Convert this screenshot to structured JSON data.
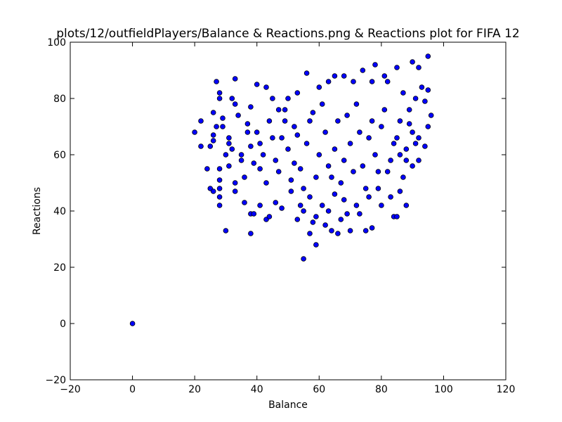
{
  "chart_data": {
    "type": "scatter",
    "title": "plots/12/outfieldPlayers/Balance & Reactions.png & Reactions plot for FIFA 12",
    "xlabel": "Balance",
    "ylabel": "Reactions",
    "xlim": [
      -20,
      120
    ],
    "ylim": [
      -20,
      100
    ],
    "xticks": [
      -20,
      0,
      20,
      40,
      60,
      80,
      100,
      120
    ],
    "yticks": [
      -20,
      0,
      20,
      40,
      60,
      80,
      100
    ],
    "xtick_labels": [
      "−20",
      "0",
      "20",
      "40",
      "60",
      "80",
      "100",
      "120"
    ],
    "ytick_labels": [
      "−20",
      "0",
      "20",
      "40",
      "60",
      "80",
      "100"
    ],
    "grid": false,
    "marker_color": "#0000ff",
    "marker_edge": "#000000",
    "points": [
      [
        0,
        0
      ],
      [
        20,
        68
      ],
      [
        22,
        72
      ],
      [
        22,
        63
      ],
      [
        24,
        55
      ],
      [
        25,
        48
      ],
      [
        25,
        63
      ],
      [
        26,
        47
      ],
      [
        26,
        65
      ],
      [
        26,
        67
      ],
      [
        26,
        75
      ],
      [
        27,
        86
      ],
      [
        27,
        70
      ],
      [
        28,
        42
      ],
      [
        28,
        45
      ],
      [
        28,
        48
      ],
      [
        28,
        51
      ],
      [
        28,
        55
      ],
      [
        28,
        80
      ],
      [
        28,
        82
      ],
      [
        29,
        70
      ],
      [
        29,
        73
      ],
      [
        30,
        33
      ],
      [
        30,
        60
      ],
      [
        31,
        56
      ],
      [
        31,
        64
      ],
      [
        31,
        66
      ],
      [
        32,
        80
      ],
      [
        32,
        62
      ],
      [
        33,
        87
      ],
      [
        33,
        78
      ],
      [
        33,
        50
      ],
      [
        33,
        47
      ],
      [
        34,
        74
      ],
      [
        35,
        60
      ],
      [
        36,
        43
      ],
      [
        37,
        68
      ],
      [
        38,
        32
      ],
      [
        38,
        39
      ],
      [
        39,
        39
      ],
      [
        38,
        77
      ],
      [
        40,
        85
      ],
      [
        41,
        55
      ],
      [
        41,
        42
      ],
      [
        43,
        37
      ],
      [
        43,
        84
      ],
      [
        44,
        38
      ],
      [
        45,
        80
      ],
      [
        46,
        43
      ],
      [
        47,
        76
      ],
      [
        48,
        41
      ],
      [
        49,
        72
      ],
      [
        50,
        80
      ],
      [
        51,
        47
      ],
      [
        52,
        57
      ],
      [
        53,
        37
      ],
      [
        53,
        82
      ],
      [
        54,
        42
      ],
      [
        55,
        23
      ],
      [
        55,
        40
      ],
      [
        56,
        89
      ],
      [
        57,
        32
      ],
      [
        57,
        45
      ],
      [
        58,
        36
      ],
      [
        59,
        28
      ],
      [
        59,
        38
      ],
      [
        60,
        84
      ],
      [
        61,
        42
      ],
      [
        62,
        35
      ],
      [
        63,
        86
      ],
      [
        63,
        40
      ],
      [
        64,
        33
      ],
      [
        65,
        88
      ],
      [
        65,
        46
      ],
      [
        66,
        32
      ],
      [
        67,
        37
      ],
      [
        68,
        88
      ],
      [
        68,
        44
      ],
      [
        69,
        39
      ],
      [
        70,
        33
      ],
      [
        71,
        86
      ],
      [
        72,
        42
      ],
      [
        73,
        39
      ],
      [
        74,
        90
      ],
      [
        75,
        33
      ],
      [
        76,
        45
      ],
      [
        77,
        86
      ],
      [
        77,
        34
      ],
      [
        78,
        92
      ],
      [
        79,
        48
      ],
      [
        80,
        42
      ],
      [
        81,
        88
      ],
      [
        82,
        86
      ],
      [
        83,
        45
      ],
      [
        84,
        38
      ],
      [
        85,
        38
      ],
      [
        85,
        91
      ],
      [
        86,
        47
      ],
      [
        86,
        60
      ],
      [
        87,
        82
      ],
      [
        88,
        58
      ],
      [
        88,
        42
      ],
      [
        89,
        71
      ],
      [
        90,
        93
      ],
      [
        90,
        56
      ],
      [
        91,
        80
      ],
      [
        92,
        91
      ],
      [
        92,
        66
      ],
      [
        93,
        84
      ],
      [
        94,
        63
      ],
      [
        94,
        79
      ],
      [
        95,
        95
      ],
      [
        95,
        83
      ],
      [
        95,
        70
      ],
      [
        96,
        74
      ],
      [
        38,
        63
      ],
      [
        40,
        68
      ],
      [
        42,
        60
      ],
      [
        44,
        72
      ],
      [
        46,
        58
      ],
      [
        48,
        66
      ],
      [
        50,
        62
      ],
      [
        52,
        70
      ],
      [
        54,
        55
      ],
      [
        56,
        64
      ],
      [
        58,
        75
      ],
      [
        60,
        60
      ],
      [
        62,
        68
      ],
      [
        64,
        52
      ],
      [
        66,
        72
      ],
      [
        68,
        58
      ],
      [
        70,
        64
      ],
      [
        72,
        78
      ],
      [
        74,
        56
      ],
      [
        76,
        66
      ],
      [
        78,
        60
      ],
      [
        80,
        70
      ],
      [
        82,
        54
      ],
      [
        84,
        64
      ],
      [
        86,
        72
      ],
      [
        88,
        62
      ],
      [
        90,
        68
      ],
      [
        92,
        58
      ],
      [
        35,
        58
      ],
      [
        36,
        52
      ],
      [
        37,
        71
      ],
      [
        39,
        57
      ],
      [
        41,
        64
      ],
      [
        43,
        50
      ],
      [
        45,
        66
      ],
      [
        47,
        54
      ],
      [
        49,
        76
      ],
      [
        51,
        51
      ],
      [
        53,
        67
      ],
      [
        55,
        48
      ],
      [
        57,
        72
      ],
      [
        59,
        52
      ],
      [
        61,
        78
      ],
      [
        63,
        56
      ],
      [
        65,
        62
      ],
      [
        67,
        50
      ],
      [
        69,
        74
      ],
      [
        71,
        54
      ],
      [
        73,
        68
      ],
      [
        75,
        48
      ],
      [
        77,
        72
      ],
      [
        79,
        54
      ],
      [
        81,
        76
      ],
      [
        83,
        58
      ],
      [
        85,
        66
      ],
      [
        87,
        52
      ],
      [
        89,
        76
      ],
      [
        91,
        64
      ]
    ]
  }
}
